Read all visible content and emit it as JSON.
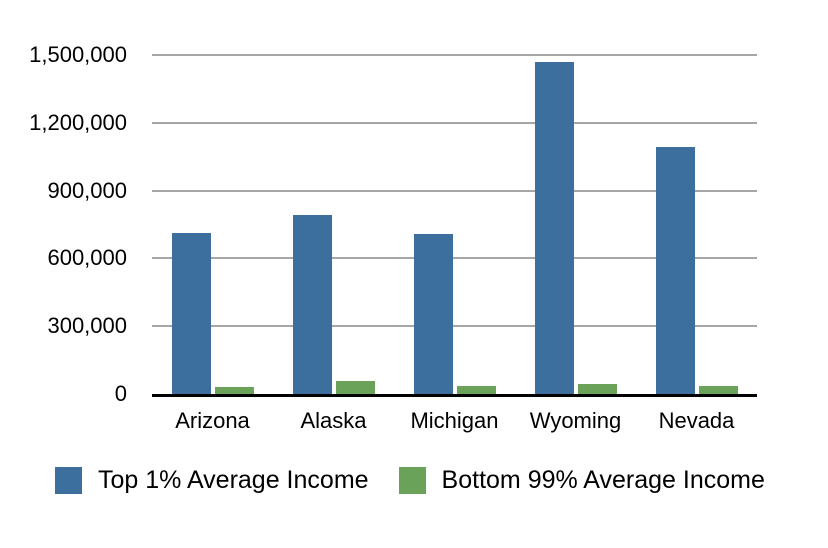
{
  "chart_data": {
    "type": "bar",
    "title": "",
    "xlabel": "",
    "ylabel": "",
    "categories": [
      "Arizona",
      "Alaska",
      "Michigan",
      "Wyoming",
      "Nevada"
    ],
    "series": [
      {
        "name": "Top 1% Average Income",
        "color": "#3C6E9E",
        "values": [
          714000,
          793000,
          708000,
          1470000,
          1095000
        ]
      },
      {
        "name": "Bottom 99% Average Income",
        "color": "#6BA25A",
        "values": [
          33000,
          58000,
          35000,
          44000,
          36000
        ]
      }
    ],
    "ylim": [
      0,
      1500000
    ],
    "yticks": {
      "values": [
        0,
        300000,
        600000,
        900000,
        1200000,
        1500000
      ],
      "labels": [
        "0",
        "300,000",
        "600,000",
        "900,000",
        "1,200,000",
        "1,500,000"
      ]
    },
    "grid": "horizontal",
    "gridline_color": "#A6A6A6",
    "axis_line_color": "#000000",
    "text_color": "#000000",
    "background_color": "#FFFFFF",
    "legend_position": "bottom-left"
  }
}
